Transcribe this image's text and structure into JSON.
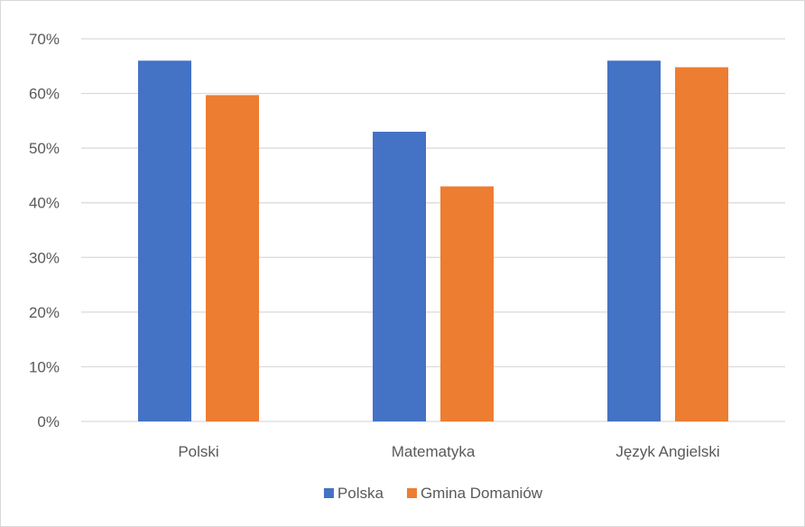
{
  "chart_data": {
    "type": "bar",
    "categories": [
      "Polski",
      "Matematyka",
      "Język Angielski"
    ],
    "series": [
      {
        "name": "Polska",
        "color": "#4472C4",
        "values": [
          0.66,
          0.53,
          0.66
        ]
      },
      {
        "name": "Gmina Domaniów",
        "color": "#ED7D31",
        "values": [
          0.597,
          0.43,
          0.648
        ]
      }
    ],
    "y_ticks": [
      "0%",
      "10%",
      "20%",
      "30%",
      "40%",
      "50%",
      "60%",
      "70%"
    ],
    "ylim": [
      0,
      0.7
    ],
    "grid": true,
    "legend_position": "bottom"
  }
}
